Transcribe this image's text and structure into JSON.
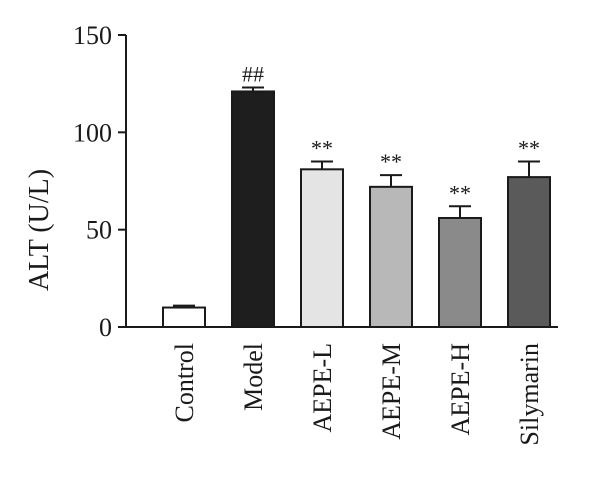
{
  "chart_data": {
    "type": "bar",
    "ylabel": "ALT (U/L)",
    "xlabel": "",
    "ylim": [
      0,
      150
    ],
    "yticks": [
      0,
      50,
      100,
      150
    ],
    "categories": [
      "Control",
      "Model",
      "AEPE-L",
      "AEPE-M",
      "AEPE-H",
      "Silymarin"
    ],
    "values": [
      10,
      121,
      81,
      72,
      56,
      77
    ],
    "errors": [
      1,
      2,
      4,
      6,
      6,
      8
    ],
    "annotations": [
      "",
      "##",
      "**",
      "**",
      "**",
      "**"
    ],
    "colors": [
      "#ffffff",
      "#1e1e1e",
      "#e4e4e4",
      "#b8b8b8",
      "#8a8a8a",
      "#5a5a5a"
    ],
    "grid": false,
    "legend": "none"
  }
}
